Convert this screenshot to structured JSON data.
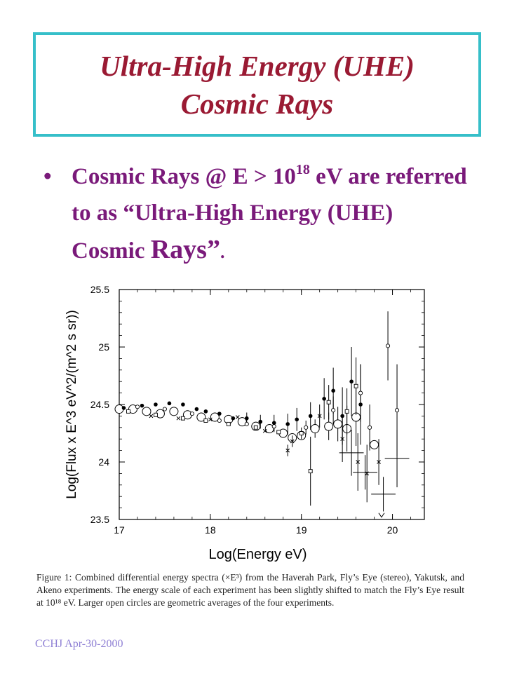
{
  "slide": {
    "title_line1": "Ultra-High Energy (UHE)",
    "title_line2": "Cosmic Rays",
    "bullet": {
      "part1": "Cosmic Rays @ E > 10",
      "sup": "18",
      "part2": " eV are referred to as “Ultra-High Energy (UHE) Cosmic ",
      "part3": "Rays”",
      "part4": "."
    },
    "caption": "Figure 1: Combined differential energy spectra (×E³) from the Haverah Park, Fly’s Eye (stereo), Yakutsk, and Akeno experiments. The energy scale of each experiment has been slightly shifted to match the Fly’s Eye result at 10¹⁸ eV. Larger open circles are geometric averages of the four experiments.",
    "footer": "CCHJ Apr-30-2000"
  },
  "chart_data": {
    "type": "scatter",
    "xlabel": "Log(Energy eV)",
    "ylabel": "Log(Flux x E^3 eV^2/(m^2 s sr))",
    "xlim": [
      17,
      20.35
    ],
    "ylim": [
      23.5,
      25.5
    ],
    "xticks": [
      "17",
      "18",
      "19",
      "20"
    ],
    "yticks": [
      "23.5",
      "24",
      "24.5",
      "25",
      "25.5"
    ],
    "series": [
      {
        "marker": "open-circle-large",
        "points": [
          [
            17.0,
            24.46
          ],
          [
            17.15,
            24.46
          ],
          [
            17.3,
            24.44
          ],
          [
            17.45,
            24.42
          ],
          [
            17.6,
            24.44
          ],
          [
            17.75,
            24.41
          ],
          [
            17.9,
            24.39
          ],
          [
            18.05,
            24.39
          ],
          [
            18.2,
            24.37
          ],
          [
            18.35,
            24.35
          ],
          [
            18.5,
            24.31
          ],
          [
            18.65,
            24.29
          ],
          [
            18.8,
            24.25
          ],
          [
            18.9,
            24.21
          ],
          [
            19.0,
            24.23
          ],
          [
            19.15,
            24.29
          ],
          [
            19.3,
            24.31
          ],
          [
            19.4,
            24.33
          ],
          [
            19.5,
            24.29
          ],
          [
            19.6,
            24.39
          ],
          [
            19.8,
            24.15
          ]
        ],
        "err": [
          0,
          0,
          0,
          0,
          0,
          0,
          0,
          0,
          0,
          0,
          0,
          0,
          0,
          0,
          0,
          0.08,
          0.12,
          0.15,
          0.2,
          0.25,
          0
        ]
      },
      {
        "marker": "filled-dot",
        "points": [
          [
            17.05,
            24.47
          ],
          [
            17.25,
            24.49
          ],
          [
            17.4,
            24.5
          ],
          [
            17.55,
            24.51
          ],
          [
            17.7,
            24.5
          ],
          [
            17.85,
            24.46
          ],
          [
            17.95,
            24.44
          ],
          [
            18.1,
            24.42
          ],
          [
            18.25,
            24.38
          ],
          [
            18.4,
            24.38
          ],
          [
            18.55,
            24.35
          ],
          [
            18.7,
            24.34
          ],
          [
            18.85,
            24.33
          ],
          [
            18.95,
            24.37
          ],
          [
            19.1,
            24.4
          ],
          [
            19.25,
            24.55
          ],
          [
            19.35,
            24.62
          ],
          [
            19.45,
            24.4
          ],
          [
            19.55,
            24.7
          ],
          [
            19.65,
            24.5
          ]
        ],
        "err": [
          0,
          0,
          0,
          0,
          0,
          0,
          0,
          0,
          0,
          0.05,
          0.06,
          0.07,
          0.09,
          0.1,
          0.12,
          0.18,
          0.2,
          0.25,
          0.3,
          0.35
        ]
      },
      {
        "marker": "open-square",
        "points": [
          [
            17.1,
            24.44
          ],
          [
            17.4,
            24.41
          ],
          [
            17.7,
            24.38
          ],
          [
            17.95,
            24.36
          ],
          [
            18.2,
            24.33
          ],
          [
            18.5,
            24.3
          ],
          [
            18.75,
            24.26
          ],
          [
            19.0,
            24.25
          ],
          [
            19.3,
            24.52
          ],
          [
            19.5,
            24.44
          ],
          [
            19.6,
            24.66
          ],
          [
            19.1,
            23.92
          ]
        ],
        "err": [
          0,
          0,
          0,
          0,
          0,
          0,
          0,
          0.05,
          0.15,
          0.2,
          0.25,
          0.3
        ]
      },
      {
        "marker": "small-circle",
        "points": [
          [
            17.2,
            24.48
          ],
          [
            17.5,
            24.46
          ],
          [
            17.8,
            24.42
          ],
          [
            18.1,
            24.36
          ],
          [
            18.4,
            24.33
          ],
          [
            18.7,
            24.31
          ],
          [
            19.05,
            24.3
          ],
          [
            19.35,
            24.45
          ],
          [
            19.65,
            24.6
          ],
          [
            19.95,
            25.01
          ],
          [
            20.05,
            24.45
          ],
          [
            19.75,
            24.3
          ]
        ],
        "err": [
          0,
          0,
          0,
          0,
          0,
          0.05,
          0.06,
          0.12,
          0.25,
          0.3,
          0.4,
          0.2
        ]
      },
      {
        "marker": "cross",
        "points": [
          [
            17.35,
            24.4
          ],
          [
            17.65,
            24.38
          ],
          [
            18.0,
            24.37
          ],
          [
            18.3,
            24.39
          ],
          [
            18.6,
            24.27
          ],
          [
            18.9,
            24.18
          ],
          [
            19.2,
            24.4
          ],
          [
            19.45,
            24.2
          ],
          [
            19.62,
            24.0
          ],
          [
            19.72,
            23.9
          ],
          [
            19.85,
            24.0
          ],
          [
            18.85,
            24.1
          ]
        ],
        "err": [
          0,
          0,
          0,
          0,
          0,
          0.05,
          0.1,
          0.2,
          0.25,
          0.25,
          0.2,
          0.05
        ]
      },
      {
        "marker": "horizontal-bar-limit",
        "points": [
          [
            19.55,
            24.08
          ],
          [
            19.7,
            23.91
          ],
          [
            19.9,
            23.72
          ],
          [
            20.05,
            24.03
          ]
        ],
        "err": [
          0.4,
          0.3,
          0.3,
          0.5
        ]
      }
    ],
    "upper_limits": [
      [
        19.88,
        23.52
      ]
    ]
  }
}
